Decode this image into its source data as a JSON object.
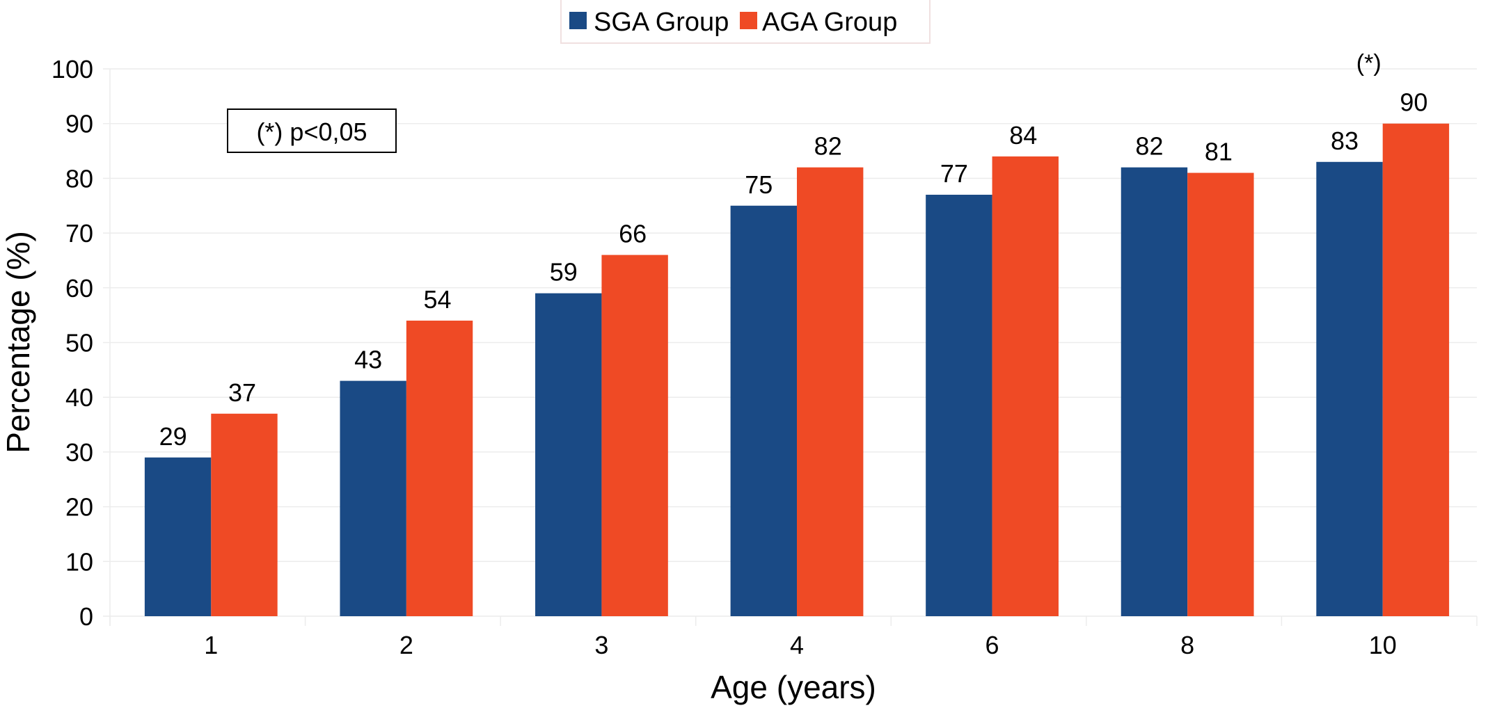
{
  "chart_data": {
    "type": "bar",
    "title": "",
    "xlabel": "Age (years)",
    "ylabel": "Percentage (%)",
    "ylim": [
      0,
      100
    ],
    "yticks": [
      0,
      10,
      20,
      30,
      40,
      50,
      60,
      70,
      80,
      90,
      100
    ],
    "grid": true,
    "legend_position": "top-center",
    "categories": [
      "1",
      "2",
      "3",
      "4",
      "6",
      "8",
      "10"
    ],
    "series": [
      {
        "name": "SGA Group",
        "color": "#1a4a85",
        "values": [
          29,
          43,
          59,
          75,
          77,
          82,
          83
        ]
      },
      {
        "name": "AGA Group",
        "color": "#ef4a25",
        "values": [
          37,
          54,
          66,
          82,
          84,
          81,
          90
        ]
      }
    ],
    "annotations": {
      "significance_box": "(*) p<0,05",
      "significance_marker": "(*)",
      "significance_marker_category": "10"
    }
  }
}
